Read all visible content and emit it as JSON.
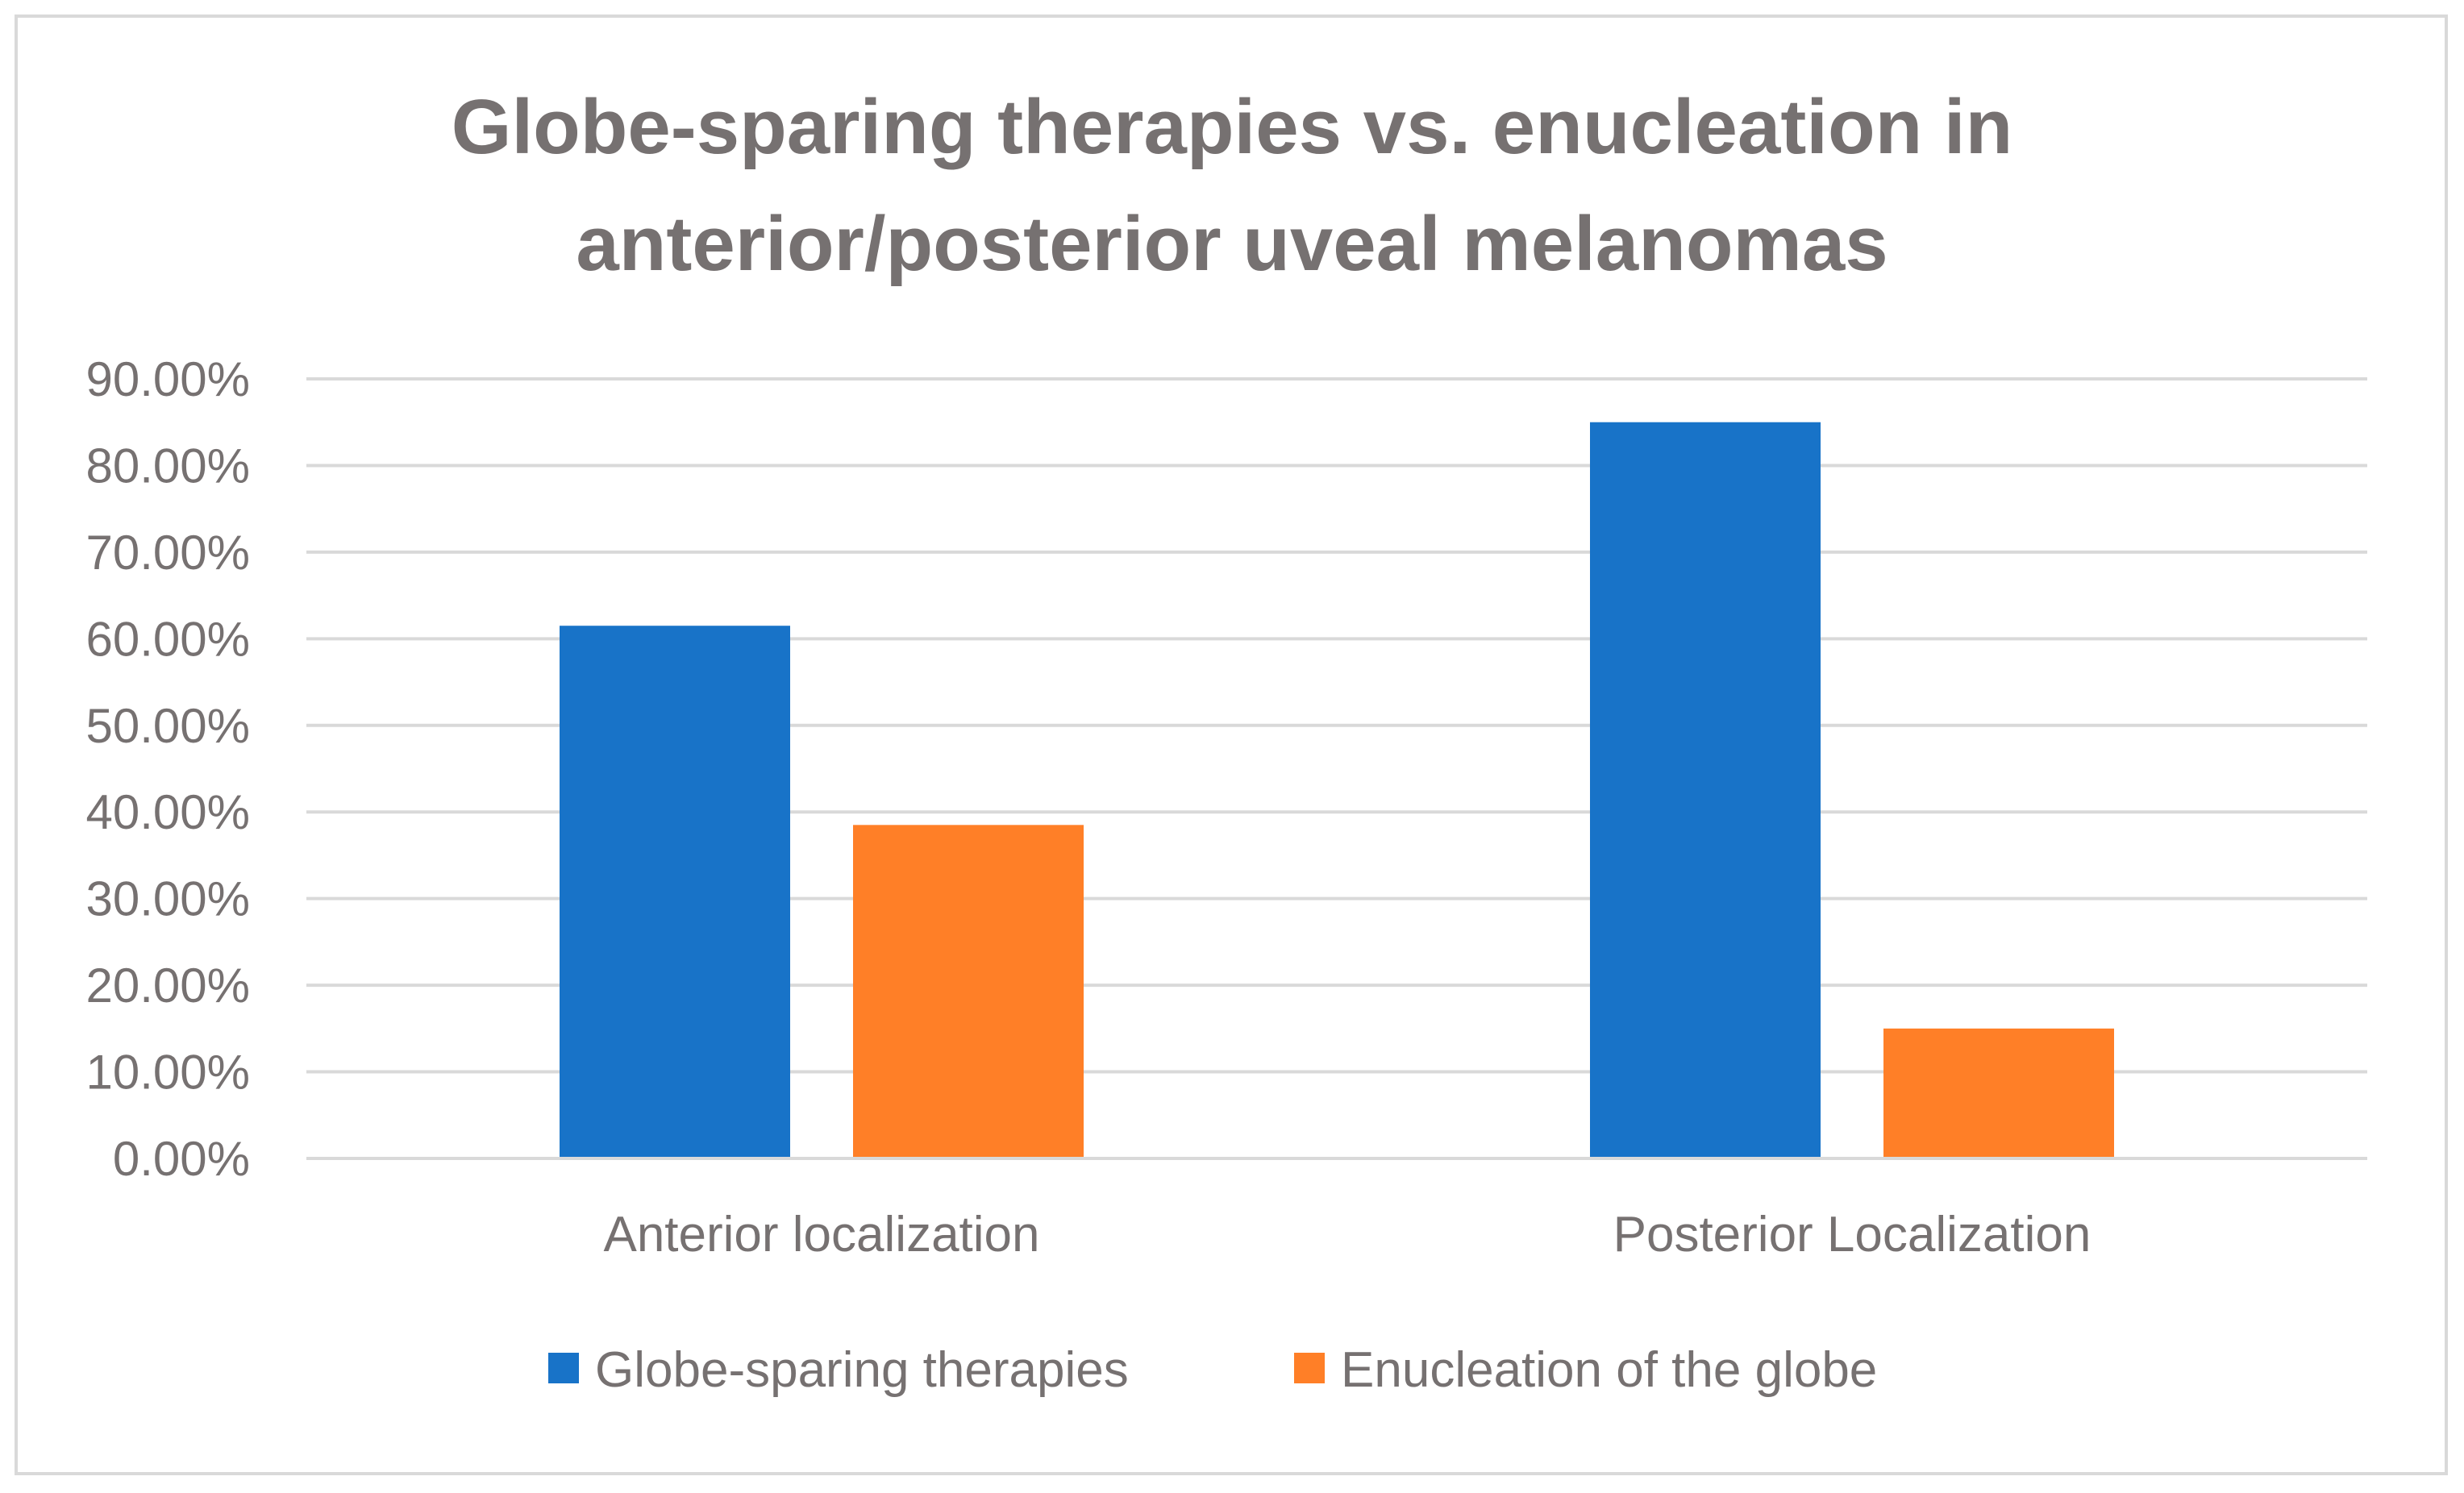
{
  "chart_data": {
    "type": "bar",
    "title_lines": [
      "Globe-sparing therapies vs. enucleation in",
      "anterior/posterior uveal melanomas"
    ],
    "categories": [
      "Anterior localization",
      "Posterior Localization"
    ],
    "series": [
      {
        "name": "Globe-sparing therapies",
        "values": [
          61.5,
          85.0
        ],
        "color": "#1873C8"
      },
      {
        "name": "Enucleation of the globe",
        "values": [
          38.5,
          15.0
        ],
        "color": "#FF7F27"
      }
    ],
    "ylim": [
      0,
      90
    ],
    "yticks": [
      "0.00%",
      "10.00%",
      "20.00%",
      "30.00%",
      "40.00%",
      "50.00%",
      "60.00%",
      "70.00%",
      "80.00%",
      "90.00%"
    ],
    "ytick_values": [
      0,
      10,
      20,
      30,
      40,
      50,
      60,
      70,
      80,
      90
    ],
    "grid": true,
    "legend_position": "bottom-center",
    "gridline_color": "#d9d9d9",
    "text_color": "#767171"
  }
}
